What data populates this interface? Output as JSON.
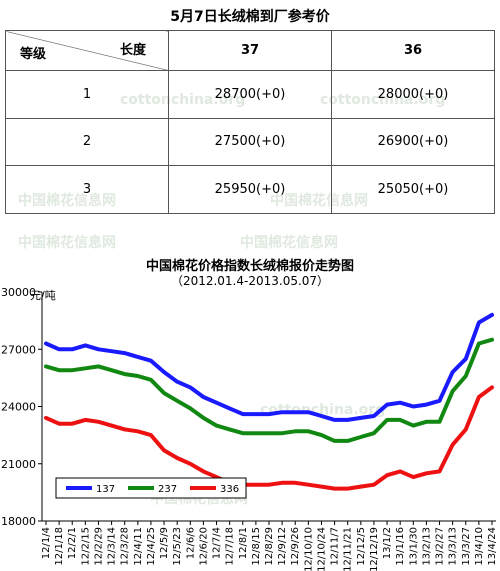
{
  "table": {
    "title": "5月7日长绒棉到厂参考价",
    "corner_level": "等级",
    "corner_length": "长度",
    "columns": [
      "37",
      "36"
    ],
    "rows": [
      {
        "grade": "1",
        "v37": "28700(+0)",
        "v36": "28000(+0)"
      },
      {
        "grade": "2",
        "v37": "27500(+0)",
        "v36": "26900(+0)"
      },
      {
        "grade": "3",
        "v37": "25950(+0)",
        "v36": "25050(+0)"
      }
    ]
  },
  "watermark": {
    "cn": "中国棉花信息网",
    "url": "cottonchina.org"
  },
  "chart_data": {
    "type": "line",
    "title": "中国棉花价格指数长绒棉报价走势图",
    "subtitle": "（2012.01.4-2013.05.07）",
    "ylabel": "元/吨",
    "ylim": [
      18000,
      30000
    ],
    "yticks": [
      18000,
      21000,
      24000,
      27000,
      30000
    ],
    "legend_position": "bottom-left",
    "grid": false,
    "categories": [
      "12/1/4",
      "12/1/18",
      "12/2/1",
      "12/2/15",
      "12/2/29",
      "12/3/14",
      "12/3/28",
      "12/4/11",
      "12/4/25",
      "12/5/9",
      "12/5/23",
      "12/6/6",
      "12/6/20",
      "12/7/4",
      "12/7/18",
      "12/8/1",
      "12/8/15",
      "12/8/29",
      "12/9/12",
      "12/9/26",
      "12/10/10",
      "12/10/24",
      "12/11/7",
      "12/11/21",
      "12/12/5",
      "12/12/19",
      "13/1/2",
      "13/1/16",
      "13/1/30",
      "13/2/13",
      "13/2/27",
      "13/3/13",
      "13/3/27",
      "13/4/10",
      "13/4/24"
    ],
    "series": [
      {
        "name": "137",
        "color": "#1a1aff",
        "values": [
          27300,
          27000,
          27000,
          27200,
          27000,
          26900,
          26800,
          26600,
          26400,
          25800,
          25300,
          25000,
          24500,
          24200,
          23900,
          23600,
          23600,
          23600,
          23700,
          23700,
          23700,
          23500,
          23300,
          23300,
          23400,
          23500,
          24100,
          24200,
          24000,
          24100,
          24300,
          25800,
          26500,
          28400,
          28800
        ]
      },
      {
        "name": "237",
        "color": "#118811",
        "values": [
          26100,
          25900,
          25900,
          26000,
          26100,
          25900,
          25700,
          25600,
          25400,
          24700,
          24300,
          23900,
          23400,
          23000,
          22800,
          22600,
          22600,
          22600,
          22600,
          22700,
          22700,
          22500,
          22200,
          22200,
          22400,
          22600,
          23300,
          23300,
          23000,
          23200,
          23200,
          24800,
          25600,
          27300,
          27500
        ]
      },
      {
        "name": "336",
        "color": "#ee1111",
        "values": [
          23400,
          23100,
          23100,
          23300,
          23200,
          23000,
          22800,
          22700,
          22500,
          21700,
          21300,
          21000,
          20600,
          20300,
          20000,
          19900,
          19900,
          19900,
          20000,
          20000,
          19900,
          19800,
          19700,
          19700,
          19800,
          19900,
          20400,
          20600,
          20300,
          20500,
          20600,
          22000,
          22800,
          24500,
          25000
        ]
      }
    ]
  }
}
